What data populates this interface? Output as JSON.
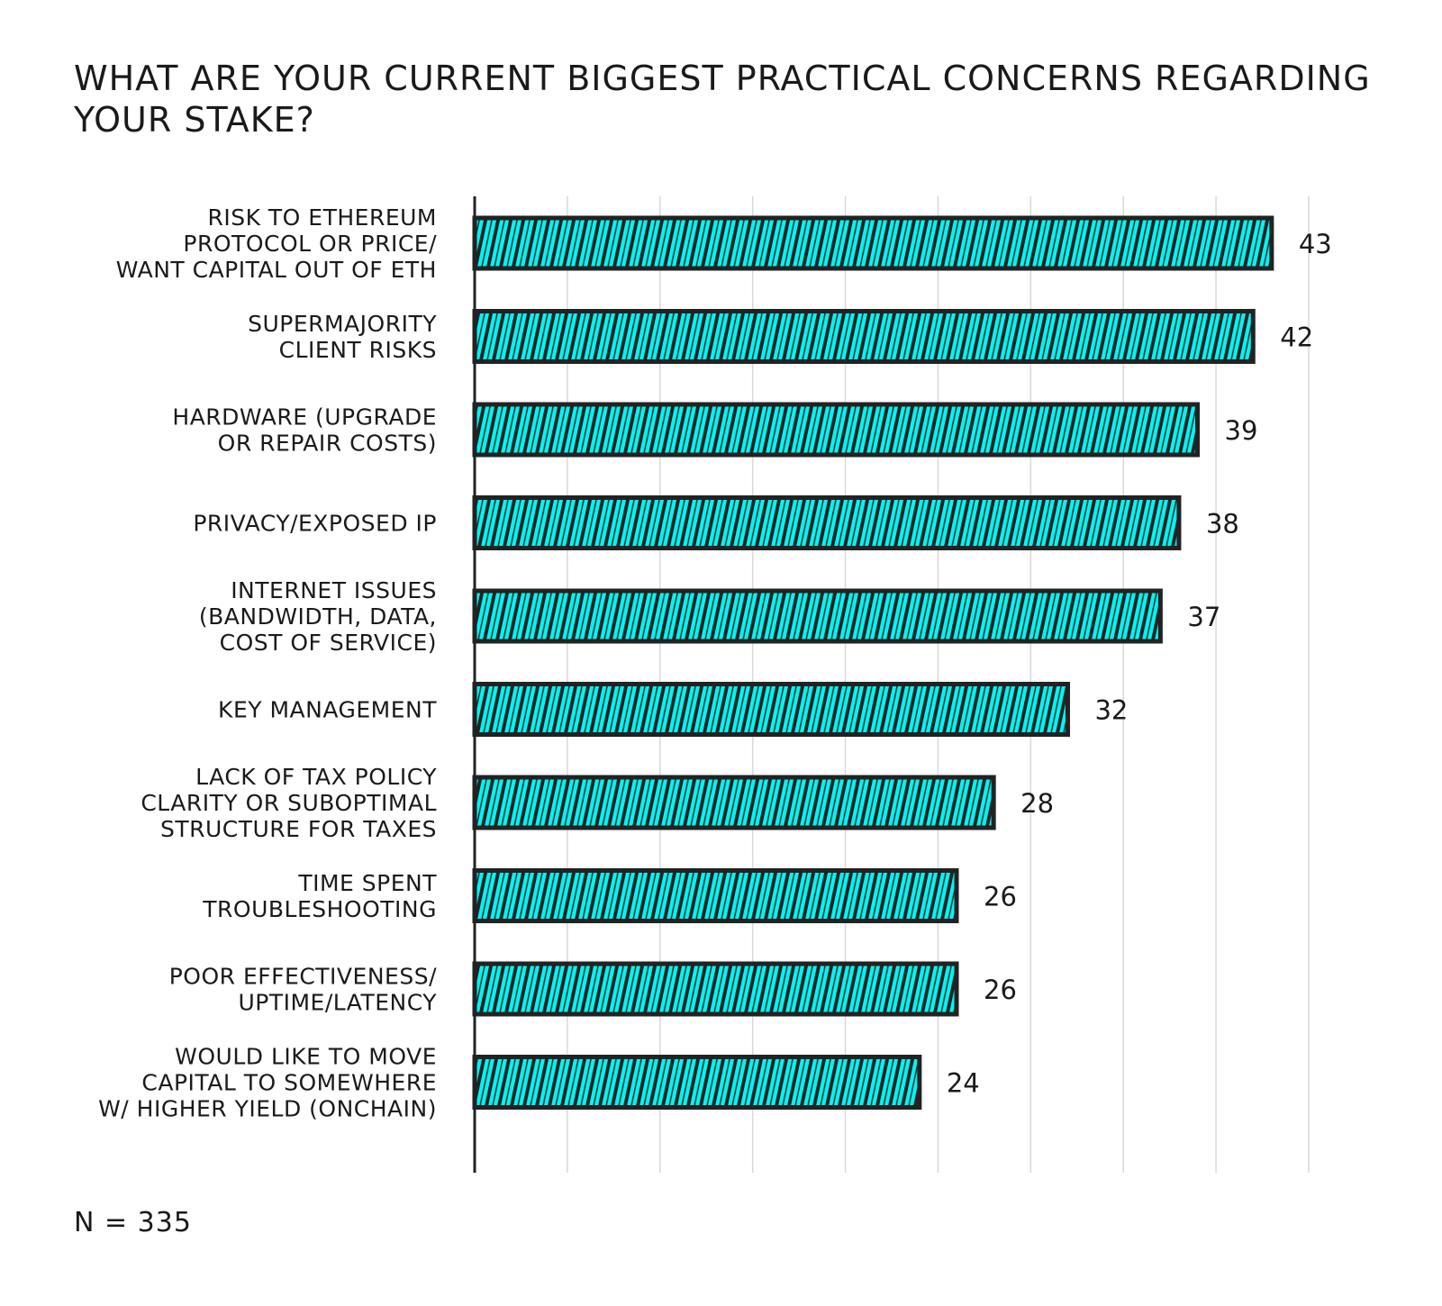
{
  "chart_data": {
    "type": "bar",
    "orientation": "horizontal",
    "title": "WHAT ARE YOUR CURRENT BIGGEST PRACTICAL CONCERNS REGARDING YOUR STAKE?",
    "categories": [
      [
        "RISK TO ETHEREUM",
        "PROTOCOL OR PRICE/",
        "WANT CAPITAL OUT OF ETH"
      ],
      [
        "SUPERMAJORITY",
        "CLIENT RISKS"
      ],
      [
        "HARDWARE (UPGRADE",
        "OR REPAIR COSTS)"
      ],
      [
        "PRIVACY/EXPOSED IP"
      ],
      [
        "INTERNET ISSUES",
        "(BANDWIDTH, DATA,",
        "COST OF SERVICE)"
      ],
      [
        "KEY MANAGEMENT"
      ],
      [
        "LACK OF TAX POLICY",
        "CLARITY OR SUBOPTIMAL",
        "STRUCTURE FOR TAXES"
      ],
      [
        "TIME SPENT",
        "TROUBLESHOOTING"
      ],
      [
        "POOR EFFECTIVENESS/",
        "UPTIME/LATENCY"
      ],
      [
        "WOULD LIKE TO MOVE",
        "CAPITAL TO SOMEWHERE",
        "W/ HIGHER YIELD (ONCHAIN)"
      ]
    ],
    "values": [
      43,
      42,
      39,
      38,
      37,
      32,
      28,
      26,
      26,
      24
    ],
    "xlim": [
      0,
      45
    ],
    "gridlines": true,
    "xlabel": "",
    "ylabel": ""
  },
  "footnote": "N = 335",
  "colors": {
    "bar_fill": "#00f5f2",
    "bar_stroke": "#222222",
    "hatch": "#222222",
    "grid": "#d8d8d8",
    "axis": "#222222"
  }
}
